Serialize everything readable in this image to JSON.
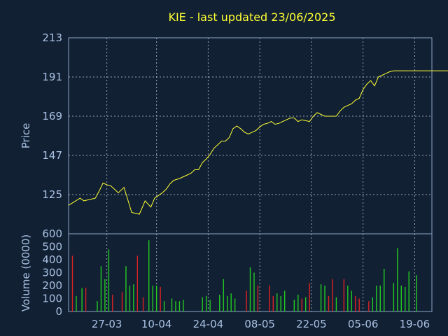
{
  "chart_data": {
    "type": "line",
    "title": "KIE - last updated 23/06/2025",
    "price_panel": {
      "ylabel": "Price",
      "ylim": [
        103,
        213
      ],
      "yticks": [
        125,
        147,
        169,
        191,
        213
      ],
      "line_color": "#ffff33",
      "x": [
        0,
        3,
        6,
        8,
        10,
        12,
        14,
        16,
        18,
        20,
        22,
        24,
        26,
        29,
        31,
        33,
        35,
        37,
        40,
        43,
        45,
        47,
        49,
        51,
        53,
        55,
        58,
        60,
        62,
        64,
        66,
        68,
        70,
        72,
        74,
        76,
        78,
        80,
        82,
        84,
        86,
        88,
        90,
        92,
        94,
        96,
        98,
        100,
        102,
        104,
        106,
        108,
        110,
        112,
        114,
        116,
        118,
        120,
        122,
        124,
        126,
        128,
        130,
        132,
        134,
        136,
        138,
        140,
        142,
        144,
        146,
        148,
        150,
        152,
        154,
        156,
        158,
        160,
        162,
        164,
        166,
        168,
        170,
        172,
        174,
        176,
        178,
        180,
        182,
        184,
        186,
        188,
        190,
        192,
        194,
        196,
        198,
        200
      ],
      "values": [
        119,
        121,
        123,
        121.5,
        122,
        122.5,
        123,
        127,
        131.5,
        130.5,
        130,
        128,
        126,
        129,
        122,
        115,
        114.5,
        114,
        121.5,
        118,
        123,
        124.5,
        126,
        128,
        131,
        133,
        134,
        135,
        136,
        137,
        139,
        139,
        143,
        145,
        147.5,
        151,
        153,
        155,
        155,
        157,
        162,
        163.5,
        162,
        160,
        159,
        160,
        161,
        163,
        164.5,
        165,
        166,
        164.5,
        165,
        166,
        167,
        168,
        168,
        166,
        167,
        166.5,
        166,
        169,
        171,
        170,
        169,
        169,
        169,
        169,
        172,
        174,
        175,
        176,
        178,
        179,
        184,
        187,
        189,
        186,
        191,
        192,
        193,
        194,
        194.5,
        194.5,
        194.5,
        194.5,
        194.5,
        194.5,
        194.5,
        194.5,
        194.5,
        194.5,
        194.5,
        194.5,
        194.5,
        194.5,
        194.5,
        194.5
      ]
    },
    "volume_panel": {
      "ylabel": "Volume (0000)",
      "ylim": [
        0,
        600
      ],
      "yticks": [
        0,
        100,
        200,
        300,
        400,
        500,
        600
      ],
      "up_color": "#22cc22",
      "down_color": "#dd2222",
      "bars": [
        [
          2,
          430,
          "down"
        ],
        [
          4,
          120,
          "up"
        ],
        [
          7,
          180,
          "up"
        ],
        [
          9,
          185,
          "down"
        ],
        [
          15,
          80,
          "up"
        ],
        [
          17,
          350,
          "up"
        ],
        [
          19,
          250,
          "up"
        ],
        [
          21,
          480,
          "up"
        ],
        [
          23,
          130,
          "down"
        ],
        [
          28,
          150,
          "down"
        ],
        [
          30,
          350,
          "up"
        ],
        [
          32,
          200,
          "up"
        ],
        [
          34,
          210,
          "up"
        ],
        [
          36,
          430,
          "down"
        ],
        [
          39,
          110,
          "down"
        ],
        [
          42,
          550,
          "up"
        ],
        [
          44,
          200,
          "up"
        ],
        [
          46,
          200,
          "up"
        ],
        [
          48,
          190,
          "down"
        ],
        [
          50,
          80,
          "up"
        ],
        [
          54,
          100,
          "up"
        ],
        [
          56,
          80,
          "up"
        ],
        [
          58,
          80,
          "up"
        ],
        [
          60,
          90,
          "up"
        ],
        [
          70,
          110,
          "up"
        ],
        [
          72,
          120,
          "up"
        ],
        [
          74,
          90,
          "up"
        ],
        [
          79,
          130,
          "up"
        ],
        [
          81,
          250,
          "up"
        ],
        [
          83,
          120,
          "up"
        ],
        [
          85,
          140,
          "up"
        ],
        [
          87,
          100,
          "up"
        ],
        [
          93,
          160,
          "down"
        ],
        [
          95,
          340,
          "up"
        ],
        [
          97,
          300,
          "up"
        ],
        [
          99,
          200,
          "down"
        ],
        [
          105,
          200,
          "down"
        ],
        [
          107,
          120,
          "down"
        ],
        [
          109,
          140,
          "up"
        ],
        [
          111,
          120,
          "up"
        ],
        [
          113,
          160,
          "up"
        ],
        [
          118,
          90,
          "up"
        ],
        [
          120,
          130,
          "up"
        ],
        [
          122,
          100,
          "down"
        ],
        [
          124,
          110,
          "up"
        ],
        [
          126,
          220,
          "down"
        ],
        [
          132,
          210,
          "up"
        ],
        [
          134,
          200,
          "up"
        ],
        [
          136,
          120,
          "down"
        ],
        [
          138,
          250,
          "down"
        ],
        [
          140,
          110,
          "up"
        ],
        [
          144,
          250,
          "down"
        ],
        [
          146,
          200,
          "up"
        ],
        [
          148,
          160,
          "up"
        ],
        [
          150,
          120,
          "down"
        ],
        [
          152,
          100,
          "down"
        ],
        [
          157,
          80,
          "down"
        ],
        [
          159,
          110,
          "up"
        ],
        [
          161,
          200,
          "up"
        ],
        [
          163,
          200,
          "up"
        ],
        [
          165,
          330,
          "up"
        ],
        [
          170,
          220,
          "up"
        ],
        [
          172,
          490,
          "up"
        ],
        [
          174,
          200,
          "up"
        ],
        [
          176,
          190,
          "up"
        ],
        [
          178,
          310,
          "up"
        ],
        [
          182,
          280,
          "up"
        ]
      ]
    },
    "x_ticks": [
      {
        "label": "27-03",
        "x": 20
      },
      {
        "label": "10-04",
        "x": 46
      },
      {
        "label": "24-04",
        "x": 73
      },
      {
        "label": "08-05",
        "x": 100
      },
      {
        "label": "22-05",
        "x": 127
      },
      {
        "label": "05-06",
        "x": 154
      },
      {
        "label": "19-06",
        "x": 181
      }
    ],
    "x_range": [
      0,
      190
    ],
    "grid": true
  }
}
